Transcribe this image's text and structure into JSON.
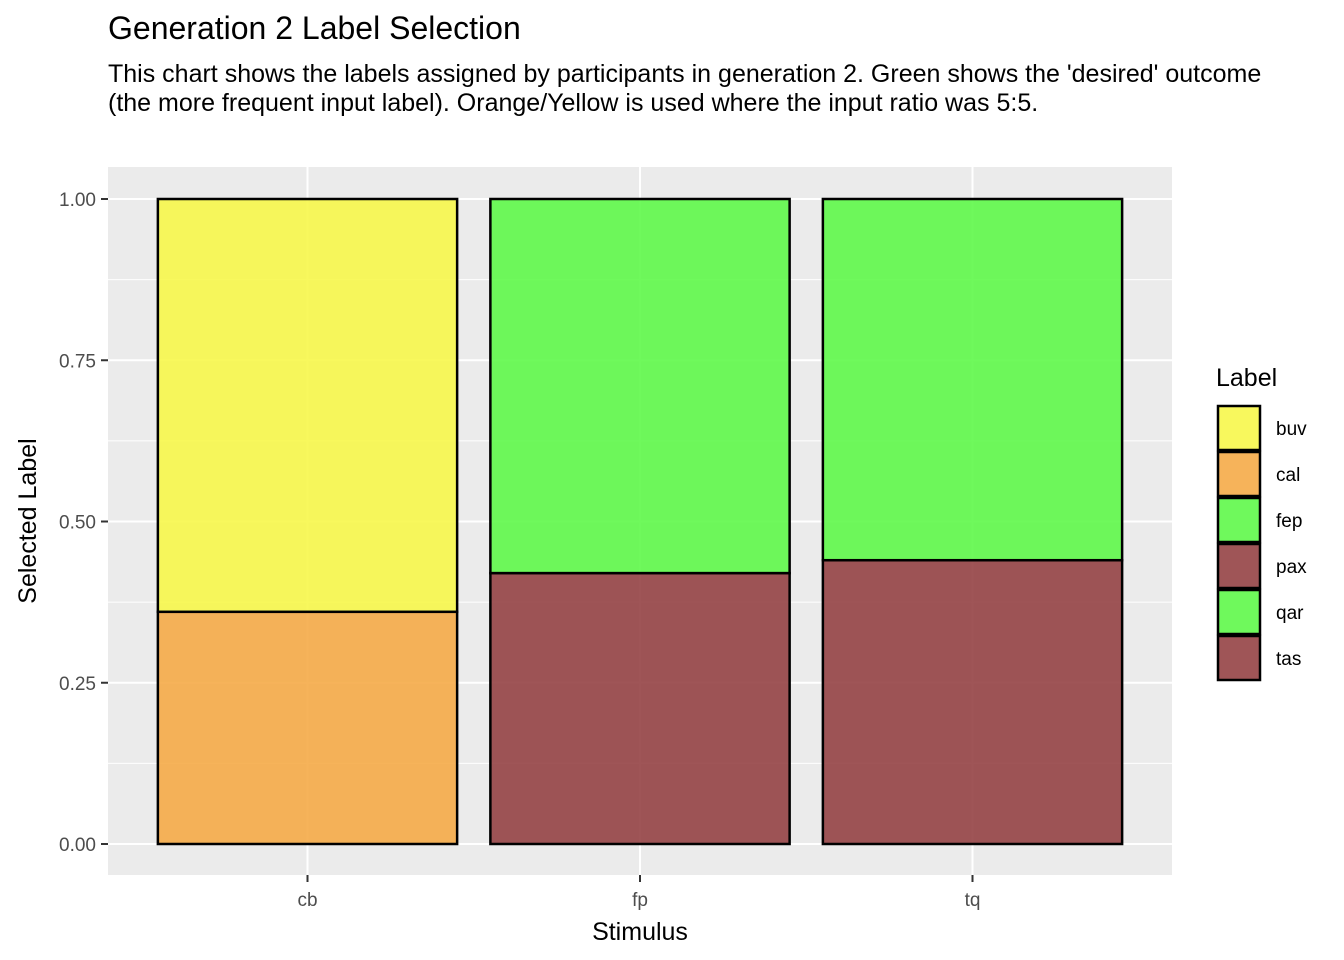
{
  "chart_data": {
    "type": "bar",
    "stacked": true,
    "title": "Generation 2 Label Selection",
    "subtitle": "This chart shows the labels assigned by participants in generation 2. Green shows the 'desired' outcome (the more frequent input label). Orange/Yellow is used where the input ratio was 5:5.",
    "xlabel": "Stimulus",
    "ylabel": "Selected Label",
    "ylim": [
      0,
      1
    ],
    "yticks": [
      "0.00",
      "0.25",
      "0.50",
      "0.75",
      "1.00"
    ],
    "categories": [
      "cb",
      "fp",
      "tq"
    ],
    "legend_title": "Label",
    "legend_position": "right",
    "grid": true,
    "series": [
      {
        "name": "buv",
        "color": "#f7f74b",
        "values": [
          0.64,
          0,
          0
        ]
      },
      {
        "name": "cal",
        "color": "#f5ab48",
        "values": [
          0.36,
          0,
          0
        ]
      },
      {
        "name": "fep",
        "color": "#5ff84a",
        "values": [
          0,
          0.58,
          0
        ]
      },
      {
        "name": "pax",
        "color": "#954345",
        "values": [
          0,
          0.42,
          0
        ]
      },
      {
        "name": "qar",
        "color": "#5ff84a",
        "values": [
          0,
          0,
          0.56
        ]
      },
      {
        "name": "tas",
        "color": "#954345",
        "values": [
          0,
          0,
          0.44
        ]
      }
    ],
    "stack_order": [
      "tas",
      "qar",
      "pax",
      "fep",
      "cal",
      "buv"
    ]
  }
}
